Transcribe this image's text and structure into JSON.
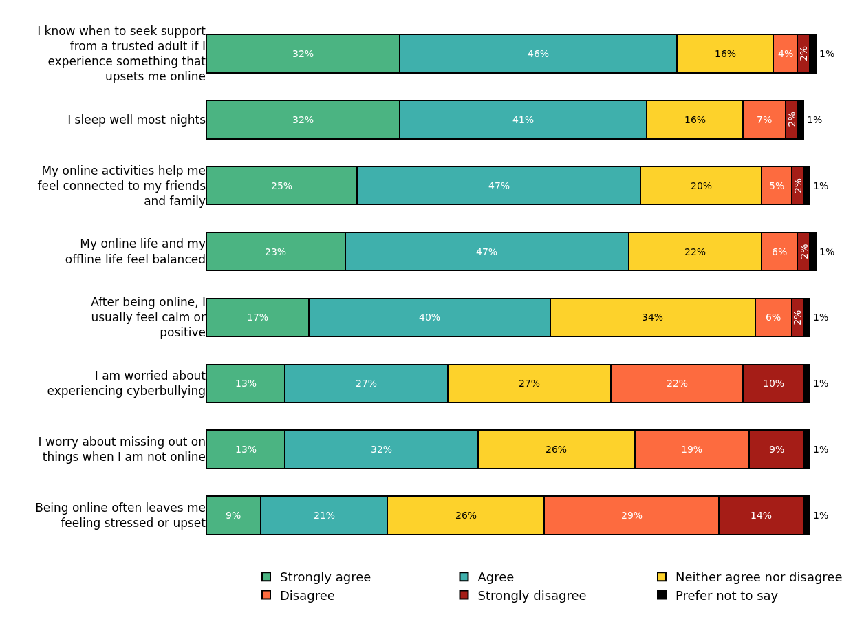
{
  "chart_data": {
    "type": "bar",
    "orientation": "horizontal",
    "stacked": true,
    "legend": "bottom",
    "categories": [
      "I know when to seek support from a trusted adult if I experience something that upsets me online",
      "I sleep well most nights",
      "My online activities help me feel connected to my friends and family",
      "My online life and my offline life feel balanced",
      "After being online, I usually feel calm or positive",
      "I am worried about experiencing cyberbullying",
      "I worry about missing out on things when I am not online",
      "Being online often leaves me feeling stressed or upset"
    ],
    "series": [
      {
        "name": "Strongly agree",
        "color": "#4bb482",
        "values": [
          32,
          32,
          25,
          23,
          17,
          13,
          13,
          9
        ],
        "value_labels": [
          "32%",
          "32%",
          "25%",
          "23%",
          "17%",
          "13%",
          "13%",
          "9%"
        ]
      },
      {
        "name": "Agree",
        "color": "#3fb0ac",
        "values": [
          46,
          41,
          47,
          47,
          40,
          27,
          32,
          21
        ],
        "value_labels": [
          "46%",
          "41%",
          "47%",
          "47%",
          "40%",
          "27%",
          "32%",
          "21%"
        ]
      },
      {
        "name": "Neither agree nor disagree",
        "color": "#fdd22b",
        "values": [
          16,
          16,
          20,
          22,
          34,
          27,
          26,
          26
        ],
        "value_labels": [
          "16%",
          "16%",
          "20%",
          "22%",
          "34%",
          "27%",
          "26%",
          "26%"
        ]
      },
      {
        "name": "Disagree",
        "color": "#fd6b3f",
        "values": [
          4,
          7,
          5,
          6,
          6,
          22,
          19,
          29
        ],
        "value_labels": [
          "4%",
          "7%",
          "5%",
          "6%",
          "6%",
          "22%",
          "19%",
          "29%"
        ]
      },
      {
        "name": "Strongly disagree",
        "color": "#a51d17",
        "values": [
          2,
          2,
          2,
          2,
          2,
          10,
          9,
          14
        ],
        "value_labels": [
          "2%",
          "2%",
          "2%",
          "2%",
          "2%",
          "10%",
          "9%",
          "14%"
        ]
      },
      {
        "name": "Prefer not to say",
        "color": "#000000",
        "values": [
          1,
          1,
          1,
          1,
          1,
          1,
          1,
          1
        ],
        "value_labels": [
          "1%",
          "1%",
          "1%",
          "1%",
          "1%",
          "1%",
          "1%",
          "1%"
        ]
      }
    ]
  }
}
